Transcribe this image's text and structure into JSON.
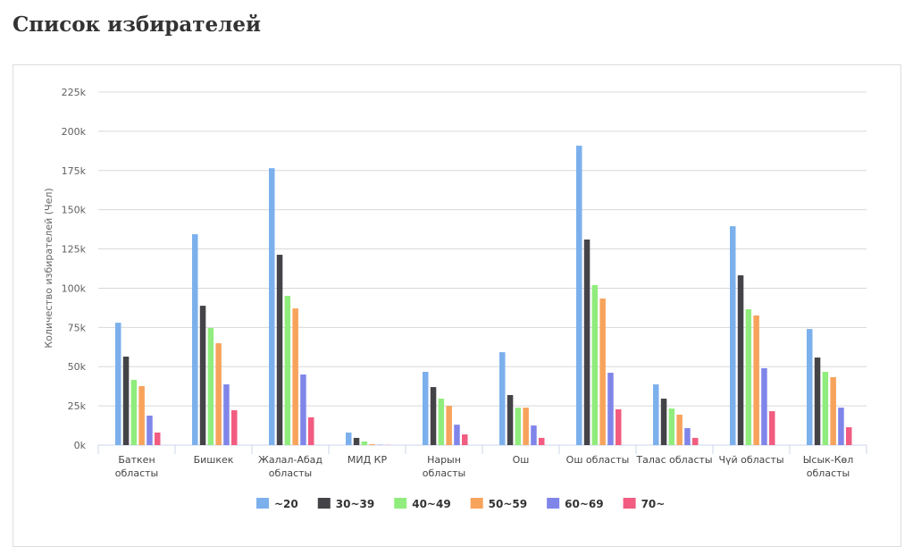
{
  "page_title": "Список избирателей",
  "chart_data": {
    "type": "bar",
    "title": "",
    "xlabel": "",
    "ylabel": "Количество избирателей (Чел)",
    "ylim": [
      0,
      225000
    ],
    "yticks": [
      "0k",
      "25k",
      "50k",
      "75k",
      "100k",
      "125k",
      "150k",
      "175k",
      "200k",
      "225k"
    ],
    "grid": true,
    "legend": "bottom",
    "categories": [
      [
        "Баткен",
        "областы"
      ],
      [
        "Бишкек"
      ],
      [
        "Жалал-Абад",
        "областы"
      ],
      [
        "МИД КР"
      ],
      [
        "Нарын",
        "областы"
      ],
      [
        "Ош"
      ],
      [
        "Ош областы"
      ],
      [
        "Талас областы"
      ],
      [
        "Чүй областы"
      ],
      [
        "Ысык-Көл",
        "областы"
      ]
    ],
    "series": [
      {
        "name": "~20",
        "color": "#7cb0ec",
        "values": [
          78000,
          134400,
          176500,
          8000,
          46700,
          59200,
          190800,
          38700,
          139500,
          74000
        ]
      },
      {
        "name": "30~39",
        "color": "#434348",
        "values": [
          56400,
          88800,
          121300,
          4600,
          37000,
          31900,
          131000,
          29600,
          108200,
          55800
        ]
      },
      {
        "name": "40~49",
        "color": "#90ed7d",
        "values": [
          41600,
          74600,
          95100,
          2300,
          29600,
          23900,
          102000,
          23300,
          86600,
          46700
        ]
      },
      {
        "name": "50~59",
        "color": "#f7a35c",
        "values": [
          37600,
          64900,
          87100,
          600,
          25000,
          23900,
          93400,
          19400,
          82600,
          43300
        ]
      },
      {
        "name": "60~69",
        "color": "#8085e9",
        "values": [
          18800,
          38700,
          45000,
          200,
          13000,
          12500,
          46100,
          10800,
          49000,
          23900
        ]
      },
      {
        "name": "70~",
        "color": "#f15c80",
        "values": [
          8000,
          22200,
          17700,
          100,
          6800,
          4600,
          22800,
          4600,
          21600,
          11400
        ]
      }
    ]
  }
}
